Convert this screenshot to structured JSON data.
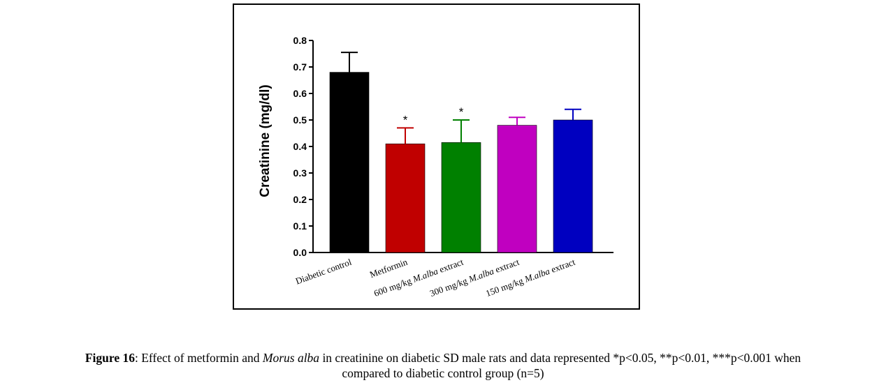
{
  "chart_data": {
    "type": "bar",
    "categories": [
      [
        "Diabetic control"
      ],
      [
        "Metformin"
      ],
      [
        "600 mg/kg ",
        {
          "i": "M.alba"
        },
        " extract"
      ],
      [
        "300 mg/kg ",
        {
          "i": "M.alba"
        },
        " extract"
      ],
      [
        "150 mg/kg ",
        {
          "i": "M.alba"
        },
        " extract"
      ]
    ],
    "values": [
      0.68,
      0.41,
      0.415,
      0.48,
      0.5
    ],
    "errors": [
      0.075,
      0.06,
      0.085,
      0.03,
      0.04
    ],
    "significance": [
      "",
      "*",
      "*",
      "",
      ""
    ],
    "colors": [
      "#000000",
      "#c00000",
      "#008000",
      "#c000c0",
      "#0000c0"
    ],
    "ylabel": "Creatinine (mg/dl)",
    "ylim": [
      0,
      0.8
    ],
    "yticks": [
      "0.0",
      "0.1",
      "0.2",
      "0.3",
      "0.4",
      "0.5",
      "0.6",
      "0.7",
      "0.8"
    ],
    "grid": false
  },
  "caption": {
    "fig_label": "Figure 16",
    "part1": ": Effect of metformin and ",
    "italic": "Morus alba",
    "part2": " in creatinine on diabetic SD male rats and data represented *p<0.05, **p<0.01, ***p<0.001 when",
    "line2": "compared to diabetic control group (n=5)"
  }
}
